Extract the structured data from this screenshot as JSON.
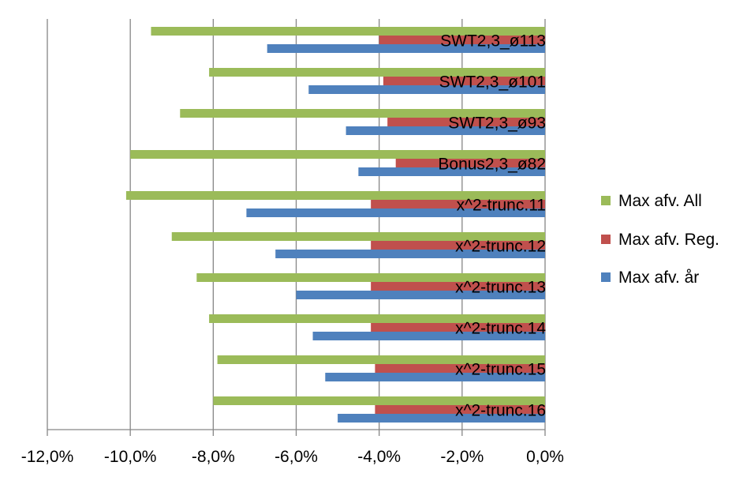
{
  "chart_data": {
    "type": "bar",
    "orientation": "horizontal",
    "categories": [
      "SWT2,3_ø113",
      "SWT2,3_ø101",
      "SWT2,3_ø93",
      "Bonus2,3_ø82",
      "x^2-trunc.11",
      "x^2-trunc.12",
      "x^2-trunc.13",
      "x^2-trunc.14",
      "x^2-trunc.15",
      "x^2-trunc.16"
    ],
    "series": [
      {
        "name": "Max afv. All",
        "color": "#9BBB59",
        "values": [
          -0.095,
          -0.081,
          -0.088,
          -0.1,
          -0.101,
          -0.09,
          -0.084,
          -0.081,
          -0.079,
          -0.08
        ]
      },
      {
        "name": "Max afv. Reg.",
        "color": "#C0504D",
        "values": [
          -0.04,
          -0.039,
          -0.038,
          -0.036,
          -0.042,
          -0.042,
          -0.042,
          -0.042,
          -0.041,
          -0.041
        ]
      },
      {
        "name": "Max afv. år",
        "color": "#4F81BD",
        "values": [
          -0.067,
          -0.057,
          -0.048,
          -0.045,
          -0.072,
          -0.065,
          -0.06,
          -0.056,
          -0.053,
          -0.05
        ]
      }
    ],
    "xlim": [
      -0.12,
      0.0
    ],
    "xticks": [
      -0.12,
      -0.1,
      -0.08,
      -0.06,
      -0.04,
      -0.02,
      0.0
    ],
    "xtick_labels": [
      "-12,0%",
      "-10,0%",
      "-8,0%",
      "-6,0%",
      "-4,0%",
      "-2,0%",
      "0,0%"
    ],
    "grid": "vertical",
    "legend": {
      "placement": "right",
      "order": [
        "Max afv. All",
        "Max afv. Reg.",
        "Max afv. år"
      ]
    },
    "title": "",
    "xlabel": "",
    "ylabel": ""
  }
}
